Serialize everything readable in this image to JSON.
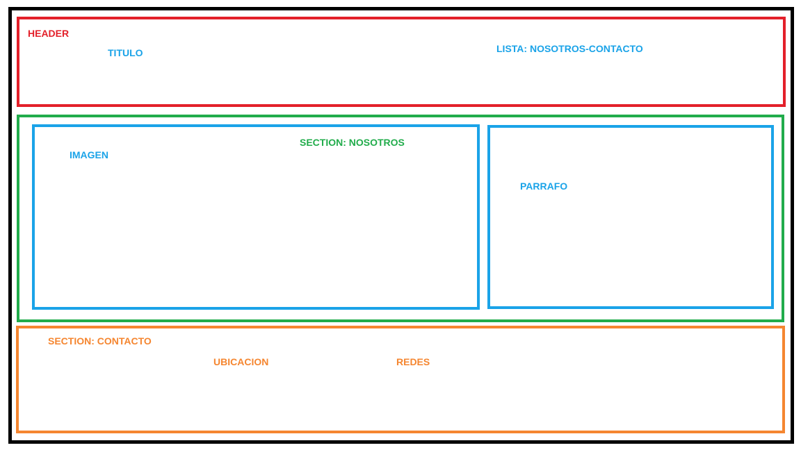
{
  "colors": {
    "frame": "#000000",
    "header": "#e3202a",
    "element": "#1aa3e8",
    "section_nosotros": "#21ac4b",
    "section_contacto": "#f58630"
  },
  "header": {
    "label": "HEADER",
    "titulo": "TITULO",
    "lista": "LISTA: NOSOTROS-CONTACTO"
  },
  "nosotros": {
    "label": "SECTION: NOSOTROS",
    "imagen": "IMAGEN",
    "parrafo": "PARRAFO"
  },
  "contacto": {
    "label": "SECTION: CONTACTO",
    "ubicacion": "UBICACION",
    "redes": "REDES"
  }
}
